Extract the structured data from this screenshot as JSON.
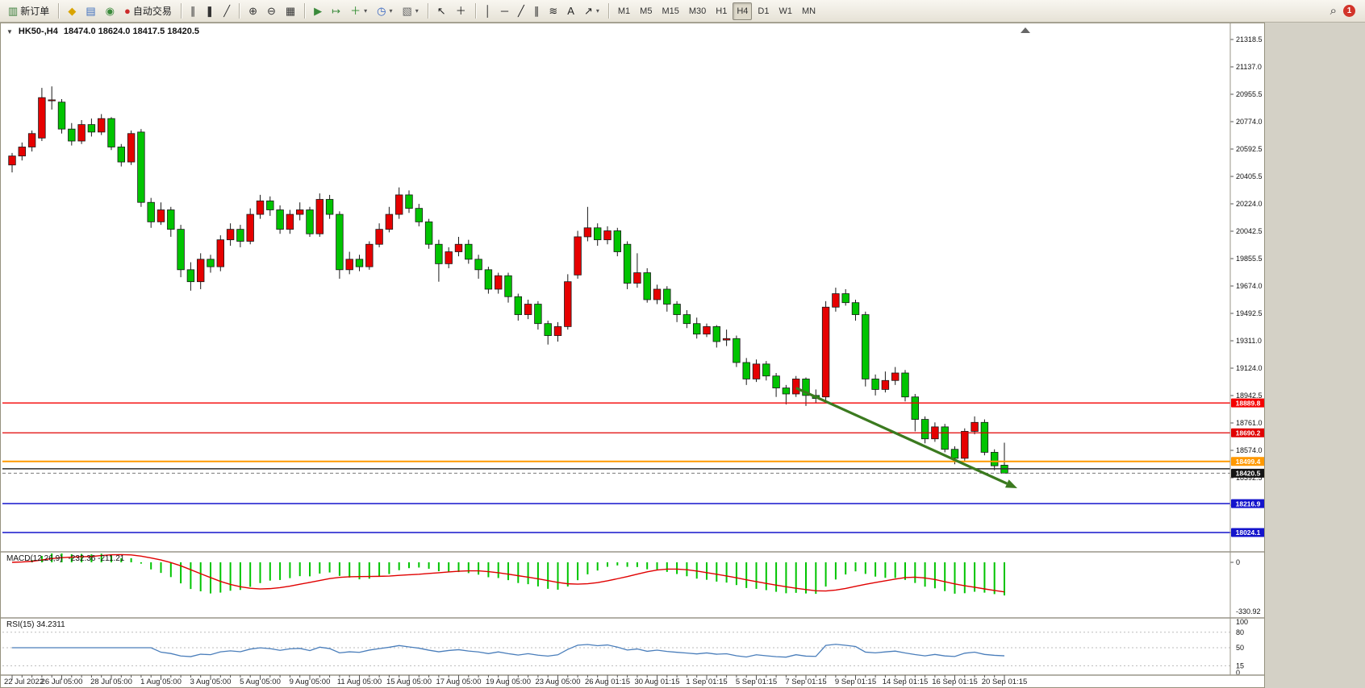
{
  "window": {
    "symbol_header": "HK50-,H4",
    "ohlc_text": "18474.0 18624.0 18417.5 18420.5",
    "collapse_icon": "▼"
  },
  "toolbar": {
    "groups": [
      {
        "buttons": [
          {
            "name": "new-order",
            "glyph": "▥",
            "glyph_color": "#3a7d3a",
            "label": "新订单"
          }
        ]
      },
      {
        "buttons": [
          {
            "name": "market-watch",
            "glyph": "◆",
            "glyph_color": "#d9a400"
          },
          {
            "name": "data-window",
            "glyph": "▤",
            "glyph_color": "#3f6fbf"
          },
          {
            "name": "refresh",
            "glyph": "◉",
            "glyph_color": "#3a8a3a"
          },
          {
            "name": "auto-trading",
            "glyph": "●",
            "glyph_color": "#cc2a2a",
            "label": "自动交易"
          }
        ]
      },
      {
        "buttons": [
          {
            "name": "chart-bars",
            "glyph": "∥",
            "glyph_color": "#333333"
          },
          {
            "name": "chart-candles",
            "glyph": "❚",
            "glyph_color": "#333333"
          },
          {
            "name": "chart-line",
            "glyph": "╱",
            "glyph_color": "#333333"
          }
        ]
      },
      {
        "buttons": [
          {
            "name": "zoom-in",
            "glyph": "⊕",
            "glyph_color": "#333333"
          },
          {
            "name": "zoom-out",
            "glyph": "⊖",
            "glyph_color": "#333333"
          },
          {
            "name": "tile-windows",
            "glyph": "▦",
            "glyph_color": "#333333"
          }
        ]
      },
      {
        "buttons": [
          {
            "name": "auto-scroll",
            "glyph": "▶",
            "glyph_color": "#3a8a3a"
          },
          {
            "name": "chart-shift",
            "glyph": "↦",
            "glyph_color": "#3a8a3a"
          },
          {
            "name": "indicators",
            "glyph": "＋",
            "glyph_color": "#2e8b2e",
            "dropdown": true
          },
          {
            "name": "periods",
            "glyph": "◷",
            "glyph_color": "#2f5fbf",
            "dropdown": true
          },
          {
            "name": "templates",
            "glyph": "▧",
            "glyph_color": "#666666",
            "dropdown": true
          }
        ]
      },
      {
        "buttons": [
          {
            "name": "cursor",
            "glyph": "↖",
            "glyph_color": "#222222"
          },
          {
            "name": "crosshair",
            "glyph": "＋",
            "glyph_color": "#222222"
          }
        ]
      },
      {
        "buttons": [
          {
            "name": "vertical-line",
            "glyph": "│",
            "glyph_color": "#222222"
          },
          {
            "name": "horizontal-line",
            "glyph": "─",
            "glyph_color": "#222222"
          },
          {
            "name": "trendline",
            "glyph": "╱",
            "glyph_color": "#222222"
          },
          {
            "name": "equidistant-channel",
            "glyph": "∥",
            "glyph_color": "#222222"
          },
          {
            "name": "fibonacci",
            "glyph": "≋",
            "glyph_color": "#222222"
          },
          {
            "name": "text-label",
            "glyph": "A",
            "glyph_color": "#222222"
          },
          {
            "name": "arrows-tool",
            "glyph": "↗",
            "glyph_color": "#222222",
            "dropdown": true
          }
        ]
      },
      {
        "buttons": [
          {
            "name": "tf-m1",
            "label": "M1",
            "timeframe": true
          },
          {
            "name": "tf-m5",
            "label": "M5",
            "timeframe": true
          },
          {
            "name": "tf-m15",
            "label": "M15",
            "timeframe": true
          },
          {
            "name": "tf-m30",
            "label": "M30",
            "timeframe": true
          },
          {
            "name": "tf-h1",
            "label": "H1",
            "timeframe": true
          },
          {
            "name": "tf-h4",
            "label": "H4",
            "timeframe": true,
            "active": true
          },
          {
            "name": "tf-d1",
            "label": "D1",
            "timeframe": true
          },
          {
            "name": "tf-w1",
            "label": "W1",
            "timeframe": true
          },
          {
            "name": "tf-mn",
            "label": "MN",
            "timeframe": true
          }
        ]
      }
    ],
    "right": {
      "search_glyph": "⌕",
      "badge": "1"
    }
  },
  "chart_data": {
    "type": "candlestick",
    "symbol": "HK50-",
    "timeframe": "H4",
    "current_ohlc": {
      "open": 18474.0,
      "high": 18624.0,
      "low": 18417.5,
      "close": 18420.5
    },
    "colors": {
      "up": "#e60000",
      "down": "#00c400",
      "wick": "#1a1a1a"
    },
    "y_axis_ticks": [
      "21318.5",
      "21137.0",
      "20955.5",
      "20774.0",
      "20592.5",
      "20405.5",
      "20224.0",
      "20042.5",
      "19855.5",
      "19674.0",
      "19492.5",
      "19311.0",
      "19124.0",
      "18942.5",
      "18761.0",
      "18574.0",
      "18392.5",
      "18211.0",
      "18024.0"
    ],
    "x_axis_labels": [
      "22 Jul 2022",
      "26 Jul 05:00",
      "28 Jul 05:00",
      "1 Aug 05:00",
      "3 Aug 05:00",
      "5 Aug 05:00",
      "9 Aug 05:00",
      "11 Aug 05:00",
      "15 Aug 05:00",
      "17 Aug 05:00",
      "19 Aug 05:00",
      "23 Aug 05:00",
      "26 Aug 01:15",
      "30 Aug 01:15",
      "1 Sep 01:15",
      "5 Sep 01:15",
      "7 Sep 01:15",
      "9 Sep 01:15",
      "14 Sep 01:15",
      "16 Sep 01:15",
      "20 Sep 01:15"
    ],
    "levels": [
      {
        "price": 18889.8,
        "color": "#f40000",
        "width": 1.3,
        "badge_bg": "#f40000",
        "label": "18889.8"
      },
      {
        "price": 18690.2,
        "color": "#e00000",
        "width": 1.3,
        "badge_bg": "#e00000",
        "label": "18690.2"
      },
      {
        "price": 18499.4,
        "color": "#ff9900",
        "width": 2,
        "badge_bg": "#ff9900",
        "label": "18499.4"
      },
      {
        "price": 18450.0,
        "color": "#2f2f2f",
        "width": 1.4
      },
      {
        "price": 18420.5,
        "color": "#7a7a7a",
        "width": 1,
        "dashed": true,
        "badge_bg": "#141414",
        "label": "18420.5"
      },
      {
        "price": 18216.9,
        "color": "#1414cc",
        "width": 1.5,
        "badge_bg": "#1414cc",
        "label": "18216.9"
      },
      {
        "price": 18024.1,
        "color": "#1414cc",
        "width": 1.5,
        "badge_bg": "#1414cc",
        "label": "18024.1"
      }
    ],
    "trend_arrow": {
      "from_bar": 79,
      "from_price": 18990,
      "to_bar": 101.3,
      "to_price": 18320,
      "color": "#3b7a1f"
    },
    "macd": {
      "label": "MACD(12,26,9)",
      "values_label": "-232.36 -211.21",
      "fast": 12,
      "slow": 26,
      "signal": 9,
      "axis_top_label": "0",
      "axis_bottom_label": "-330.92",
      "hist_color": "#00c400",
      "signal_color": "#e00000"
    },
    "rsi": {
      "label": "RSI(15) 34.2311",
      "period": 15,
      "levels": [
        80,
        50,
        15
      ],
      "axis_labels": [
        "100",
        "80",
        "50",
        "15",
        "0"
      ],
      "color": "#4a7ebb"
    },
    "candles": [
      [
        20480,
        20560,
        20430,
        20540
      ],
      [
        20540,
        20630,
        20510,
        20600
      ],
      [
        20600,
        20710,
        20570,
        20690
      ],
      [
        20660,
        20995,
        20640,
        20930
      ],
      [
        20910,
        21005,
        20850,
        20915
      ],
      [
        20900,
        20920,
        20690,
        20720
      ],
      [
        20720,
        20760,
        20610,
        20640
      ],
      [
        20640,
        20780,
        20620,
        20750
      ],
      [
        20750,
        20790,
        20670,
        20700
      ],
      [
        20700,
        20820,
        20680,
        20790
      ],
      [
        20790,
        20800,
        20580,
        20600
      ],
      [
        20600,
        20620,
        20470,
        20500
      ],
      [
        20500,
        20710,
        20480,
        20690
      ],
      [
        20700,
        20720,
        20200,
        20230
      ],
      [
        20230,
        20260,
        20060,
        20100
      ],
      [
        20100,
        20230,
        20080,
        20180
      ],
      [
        20180,
        20200,
        20000,
        20050
      ],
      [
        20050,
        20080,
        19730,
        19780
      ],
      [
        19780,
        19830,
        19640,
        19700
      ],
      [
        19700,
        19890,
        19650,
        19850
      ],
      [
        19850,
        19880,
        19760,
        19800
      ],
      [
        19800,
        20010,
        19770,
        19980
      ],
      [
        19980,
        20090,
        19940,
        20050
      ],
      [
        20050,
        20080,
        19930,
        19970
      ],
      [
        19970,
        20190,
        19950,
        20150
      ],
      [
        20150,
        20280,
        20120,
        20240
      ],
      [
        20240,
        20270,
        20140,
        20180
      ],
      [
        20180,
        20210,
        20020,
        20050
      ],
      [
        20050,
        20180,
        20020,
        20150
      ],
      [
        20150,
        20230,
        20110,
        20180
      ],
      [
        20180,
        20200,
        20000,
        20020
      ],
      [
        20020,
        20290,
        20000,
        20250
      ],
      [
        20250,
        20280,
        20120,
        20150
      ],
      [
        20150,
        20170,
        19720,
        19780
      ],
      [
        19780,
        19900,
        19750,
        19850
      ],
      [
        19850,
        19880,
        19770,
        19800
      ],
      [
        19800,
        19970,
        19780,
        19950
      ],
      [
        19950,
        20090,
        19930,
        20050
      ],
      [
        20050,
        20200,
        20030,
        20150
      ],
      [
        20150,
        20330,
        20120,
        20280
      ],
      [
        20280,
        20310,
        20160,
        20190
      ],
      [
        20190,
        20220,
        20070,
        20100
      ],
      [
        20100,
        20120,
        19920,
        19950
      ],
      [
        19950,
        19980,
        19700,
        19820
      ],
      [
        19820,
        19930,
        19790,
        19900
      ],
      [
        19900,
        20000,
        19870,
        19950
      ],
      [
        19950,
        19980,
        19820,
        19850
      ],
      [
        19850,
        19880,
        19720,
        19780
      ],
      [
        19780,
        19800,
        19620,
        19650
      ],
      [
        19650,
        19760,
        19620,
        19740
      ],
      [
        19740,
        19760,
        19560,
        19600
      ],
      [
        19600,
        19620,
        19440,
        19480
      ],
      [
        19480,
        19580,
        19450,
        19550
      ],
      [
        19550,
        19570,
        19380,
        19420
      ],
      [
        19420,
        19440,
        19280,
        19340
      ],
      [
        19340,
        19430,
        19300,
        19400
      ],
      [
        19400,
        19750,
        19380,
        19700
      ],
      [
        19745,
        20040,
        19720,
        20000
      ],
      [
        20000,
        20200,
        19970,
        20060
      ],
      [
        20060,
        20090,
        19940,
        19980
      ],
      [
        19980,
        20070,
        19950,
        20040
      ],
      [
        20040,
        20060,
        19870,
        19900
      ],
      [
        19950,
        19970,
        19650,
        19690
      ],
      [
        19690,
        19890,
        19660,
        19760
      ],
      [
        19760,
        19790,
        19560,
        19580
      ],
      [
        19580,
        19680,
        19550,
        19650
      ],
      [
        19650,
        19670,
        19500,
        19550
      ],
      [
        19550,
        19570,
        19430,
        19480
      ],
      [
        19480,
        19510,
        19390,
        19420
      ],
      [
        19420,
        19460,
        19320,
        19350
      ],
      [
        19350,
        19420,
        19330,
        19400
      ],
      [
        19400,
        19410,
        19260,
        19300
      ],
      [
        19310,
        19380,
        19270,
        19320
      ],
      [
        19320,
        19340,
        19130,
        19160
      ],
      [
        19160,
        19190,
        19010,
        19050
      ],
      [
        19050,
        19180,
        19030,
        19150
      ],
      [
        19150,
        19170,
        19040,
        19070
      ],
      [
        19070,
        19090,
        18930,
        18990
      ],
      [
        18990,
        19010,
        18880,
        18950
      ],
      [
        18950,
        19070,
        18930,
        19050
      ],
      [
        19050,
        19060,
        18870,
        18940
      ],
      [
        18940,
        18980,
        18890,
        18920
      ],
      [
        18930,
        19570,
        18900,
        19530
      ],
      [
        19530,
        19660,
        19500,
        19620
      ],
      [
        19620,
        19650,
        19540,
        19560
      ],
      [
        19560,
        19580,
        19440,
        19480
      ],
      [
        19480,
        19500,
        19000,
        19050
      ],
      [
        19050,
        19080,
        18940,
        18980
      ],
      [
        18980,
        19100,
        18960,
        19040
      ],
      [
        19040,
        19130,
        19010,
        19090
      ],
      [
        19090,
        19110,
        18900,
        18930
      ],
      [
        18930,
        18950,
        18700,
        18780
      ],
      [
        18780,
        18800,
        18620,
        18650
      ],
      [
        18650,
        18760,
        18630,
        18730
      ],
      [
        18730,
        18750,
        18560,
        18580
      ],
      [
        18580,
        18600,
        18480,
        18520
      ],
      [
        18520,
        18720,
        18500,
        18700
      ],
      [
        18700,
        18800,
        18680,
        18760
      ],
      [
        18760,
        18780,
        18540,
        18560
      ],
      [
        18560,
        18580,
        18440,
        18470
      ],
      [
        18474,
        18624,
        18417.5,
        18420.5
      ]
    ]
  }
}
